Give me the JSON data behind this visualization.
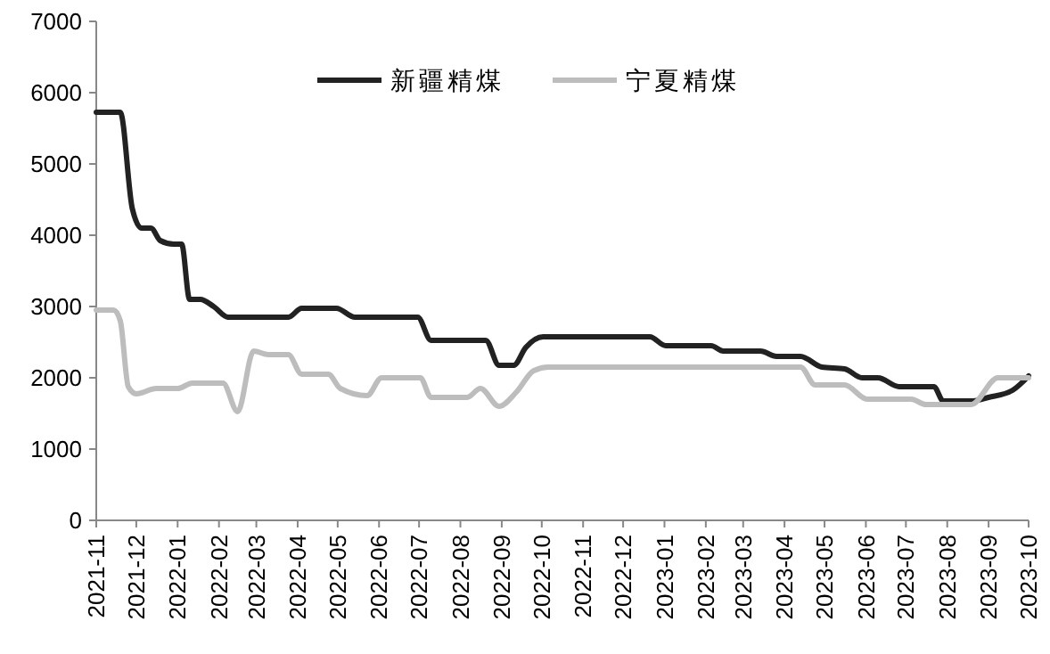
{
  "chart_data": {
    "type": "line",
    "xlim": [
      "2021-11",
      "2023-10"
    ],
    "xticks": [
      "2021-11",
      "2021-12",
      "2022-01",
      "2022-02",
      "2022-03",
      "2022-04",
      "2022-05",
      "2022-06",
      "2022-07",
      "2022-08",
      "2022-09",
      "2022-10",
      "2022-11",
      "2022-12",
      "2023-01",
      "2023-02",
      "2023-03",
      "2023-04",
      "2023-05",
      "2023-06",
      "2023-07",
      "2023-08",
      "2023-09",
      "2023-10"
    ],
    "ylim": [
      0,
      7000
    ],
    "yticks": [
      0,
      1000,
      2000,
      3000,
      4000,
      5000,
      6000,
      7000
    ],
    "legend": "top",
    "grid": false,
    "series": [
      {
        "name": "新疆精煤",
        "color": "#222222",
        "x": [
          "2021-11-01",
          "2021-11-19",
          "2021-11-28",
          "2021-12-05",
          "2021-12-12",
          "2021-12-19",
          "2021-12-29",
          "2022-01-04",
          "2022-01-10",
          "2022-01-18",
          "2022-01-28",
          "2022-02-08",
          "2022-03-25",
          "2022-04-04",
          "2022-04-30",
          "2022-05-14",
          "2022-06-30",
          "2022-07-10",
          "2022-08-20",
          "2022-08-30",
          "2022-09-10",
          "2022-09-19",
          "2022-10-02",
          "2022-12-21",
          "2023-01-02",
          "2023-02-05",
          "2023-02-14",
          "2023-03-14",
          "2023-03-26",
          "2023-04-13",
          "2023-04-29",
          "2023-05-16",
          "2023-05-29",
          "2023-06-10",
          "2023-06-26",
          "2023-07-22",
          "2023-07-29",
          "2023-08-19",
          "2023-09-01",
          "2023-09-19",
          "2023-10-01"
        ],
        "values": [
          5725,
          5725,
          4375,
          4100,
          4100,
          3925,
          3875,
          3875,
          3100,
          3100,
          3000,
          2850,
          2850,
          2975,
          2975,
          2850,
          2850,
          2525,
          2525,
          2175,
          2175,
          2425,
          2575,
          2575,
          2450,
          2450,
          2375,
          2375,
          2300,
          2300,
          2150,
          2125,
          2000,
          2000,
          1875,
          1875,
          1675,
          1675,
          1725,
          1825,
          2025
        ]
      },
      {
        "name": "宁夏精煤",
        "color": "#bdbdbd",
        "x": [
          "2021-11-01",
          "2021-11-14",
          "2021-11-19",
          "2021-11-25",
          "2021-12-01",
          "2021-12-16",
          "2022-01-01",
          "2022-01-12",
          "2022-02-04",
          "2022-02-15",
          "2022-02-27",
          "2022-03-10",
          "2022-03-25",
          "2022-04-04",
          "2022-04-24",
          "2022-05-03",
          "2022-05-23",
          "2022-06-03",
          "2022-07-02",
          "2022-07-10",
          "2022-08-06",
          "2022-08-16",
          "2022-08-30",
          "2022-09-12",
          "2022-09-25",
          "2022-10-06",
          "2023-04-13",
          "2023-04-24",
          "2023-05-16",
          "2023-06-02",
          "2023-07-05",
          "2023-07-16",
          "2023-08-19",
          "2023-09-08",
          "2023-10-01"
        ],
        "values": [
          2950,
          2950,
          2800,
          1875,
          1775,
          1850,
          1850,
          1925,
          1925,
          1525,
          2375,
          2325,
          2325,
          2050,
          2050,
          1850,
          1750,
          2000,
          2000,
          1725,
          1725,
          1850,
          1600,
          1800,
          2100,
          2150,
          2150,
          1900,
          1900,
          1700,
          1700,
          1625,
          1625,
          2000,
          2000
        ]
      }
    ]
  }
}
